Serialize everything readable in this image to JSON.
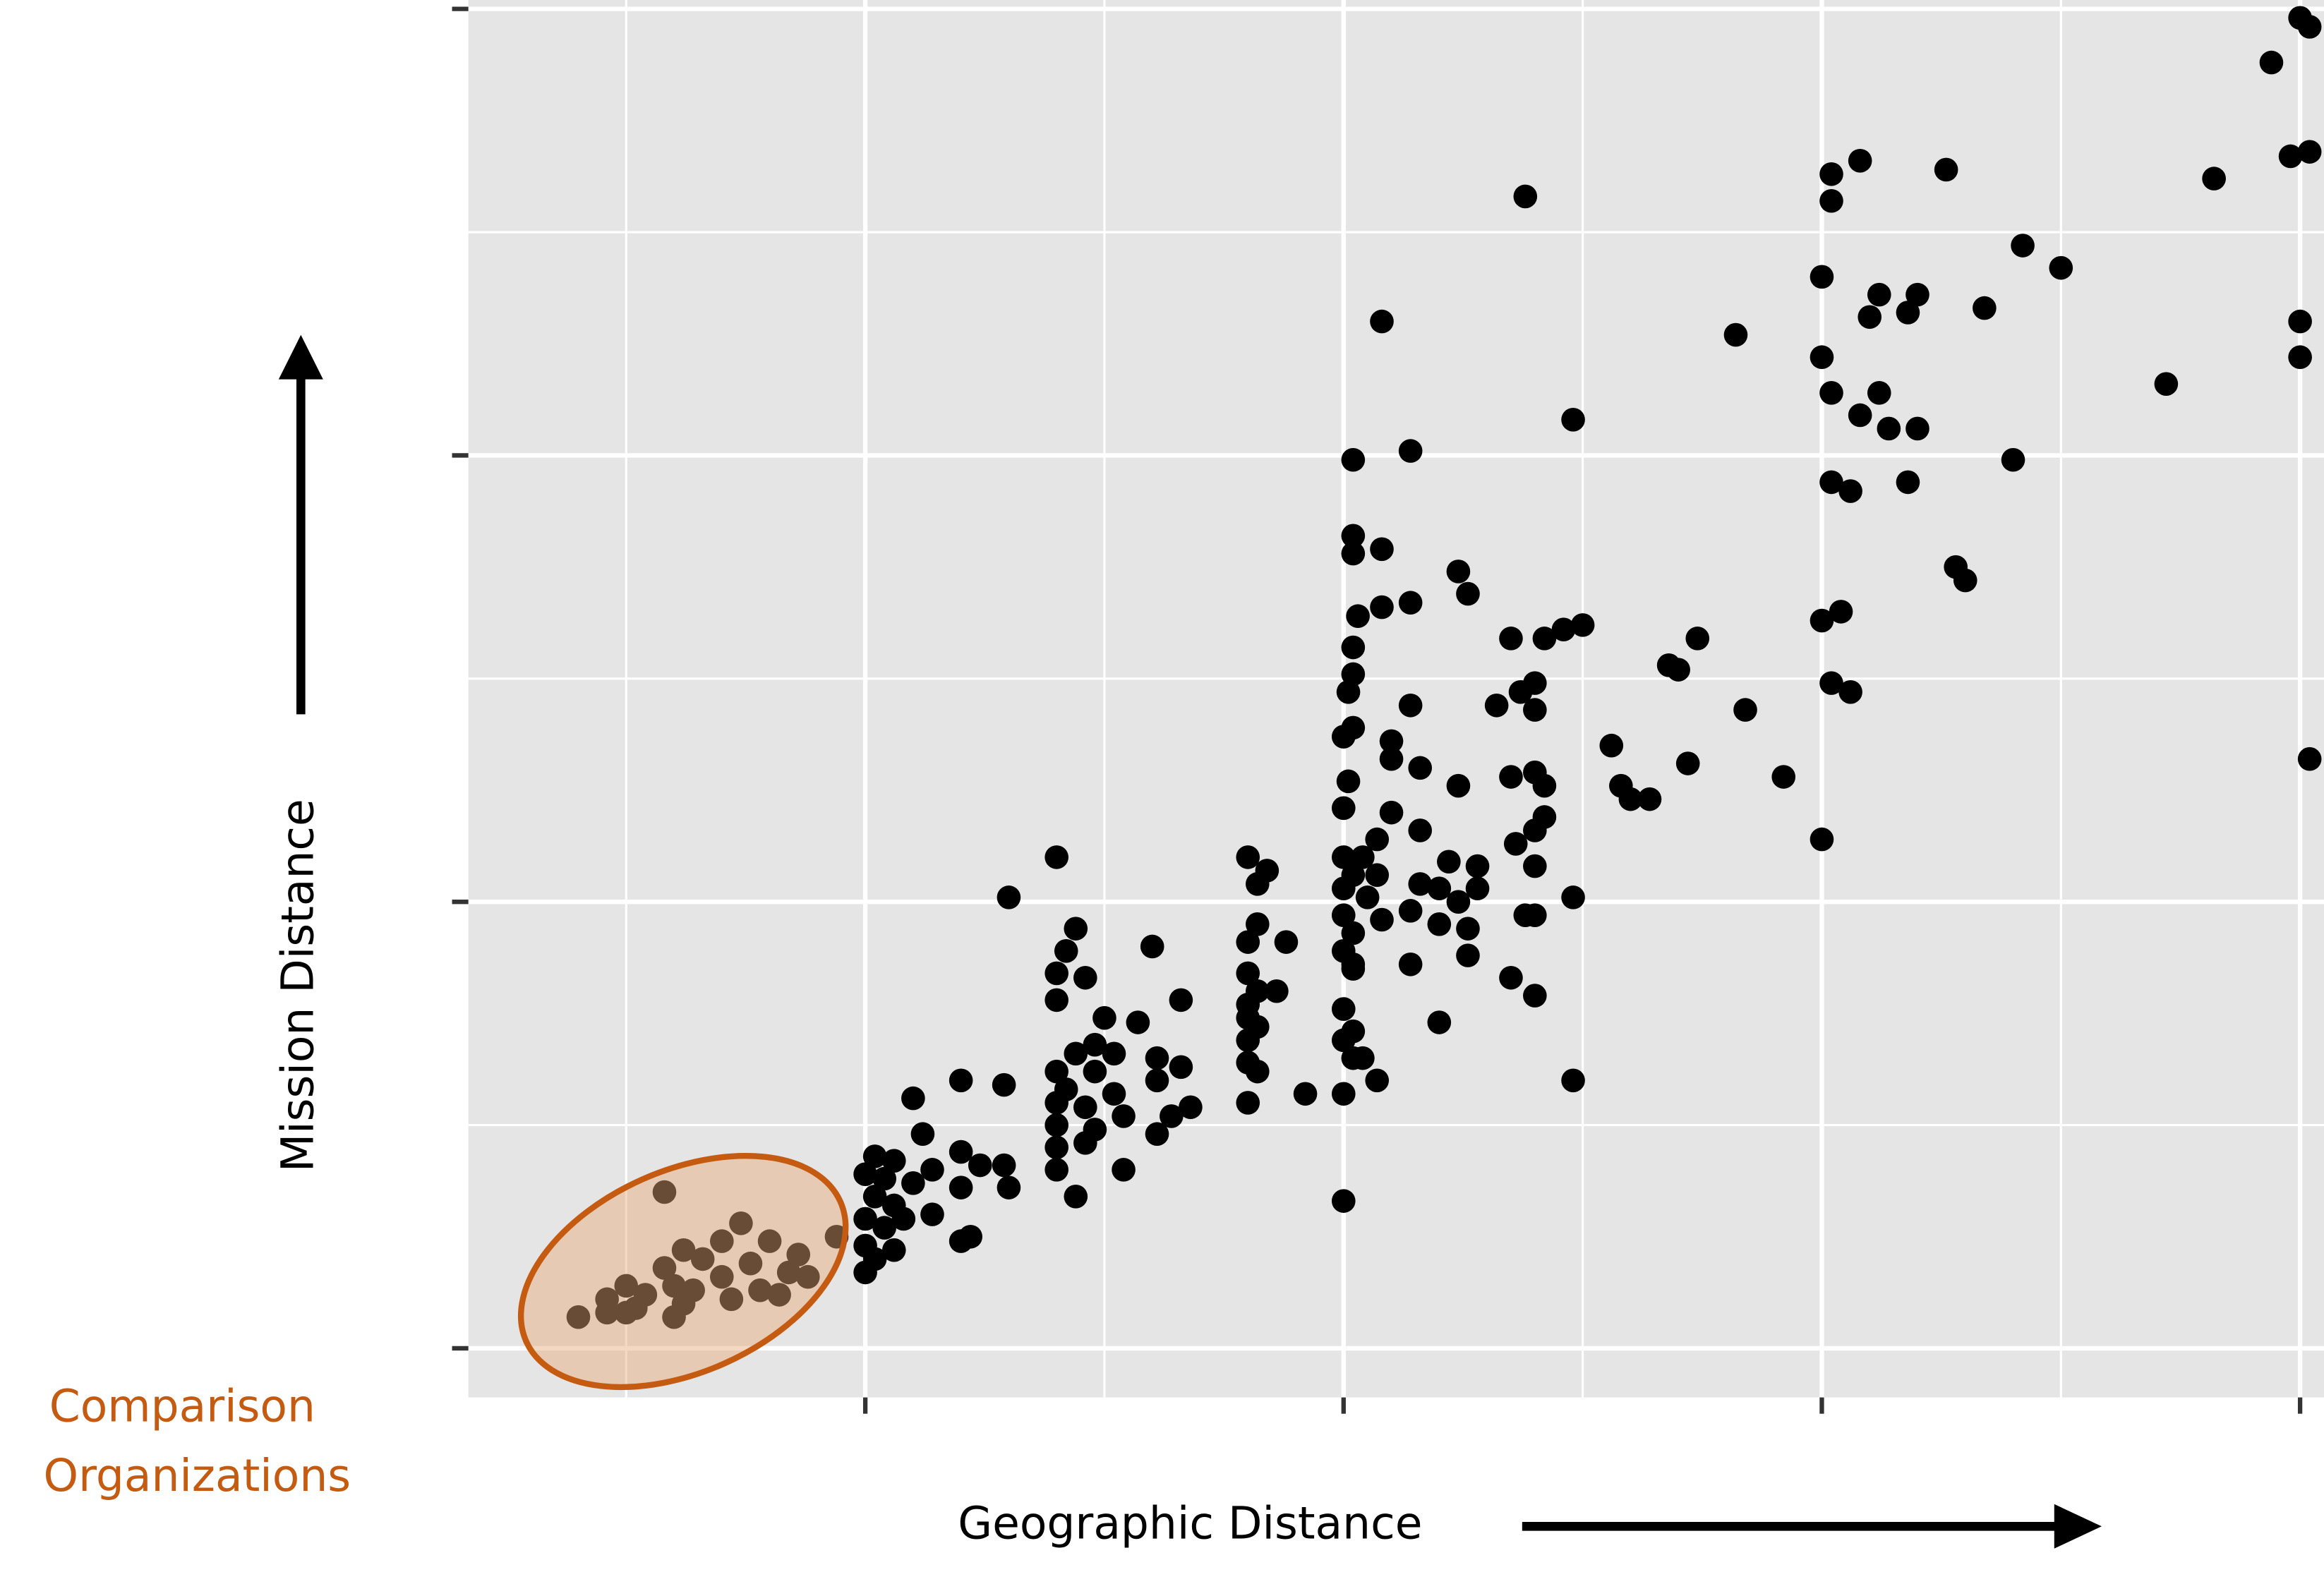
{
  "chart_data": {
    "type": "scatter",
    "xlabel": "Geographic Distance",
    "ylabel": "Mission Distance",
    "annotation": [
      "Comparison",
      "Organizations"
    ],
    "color": "#000000",
    "grid": true,
    "xlim": [
      0.17,
      4.05
    ],
    "ylim": [
      -0.11,
      3.02
    ],
    "xticks": [
      1,
      2,
      3,
      4
    ],
    "yticks": [
      0,
      1,
      2,
      3
    ],
    "x": [
      4.0,
      3.94,
      4.02,
      3.98,
      4.02,
      3.82,
      2.38,
      3.02,
      3.08,
      3.26,
      3.02,
      3.42,
      3.5,
      3.0,
      3.12,
      3.2,
      3.1,
      3.18,
      3.34,
      2.82,
      2.08,
      4.0,
      4.0,
      3.0,
      3.72,
      3.02,
      3.12,
      3.08,
      2.48,
      3.14,
      3.2,
      2.02,
      2.14,
      3.4,
      3.02,
      3.06,
      3.18,
      2.02,
      2.02,
      2.08,
      2.24,
      2.26,
      3.28,
      3.3,
      2.03,
      2.08,
      2.14,
      3.0,
      3.04,
      2.46,
      2.5,
      2.42,
      2.35,
      2.74,
      2.02,
      2.68,
      2.7,
      2.02,
      3.02,
      3.06,
      2.4,
      2.37,
      2.01,
      2.14,
      2.32,
      2.84,
      2.4,
      2.02,
      2.0,
      2.1,
      2.56,
      2.1,
      2.16,
      2.72,
      2.01,
      2.24,
      2.35,
      2.4,
      2.58,
      2.92,
      2.42,
      2.6,
      2.64,
      2.0,
      2.1,
      2.42,
      2.16,
      2.4,
      3.0,
      2.36,
      2.07,
      1.8,
      1.4,
      2.0,
      2.04,
      2.22,
      2.28,
      2.4,
      1.84,
      2.02,
      2.07,
      1.82,
      2.16,
      2.2,
      2.28,
      2.0,
      2.05,
      1.3,
      2.48,
      2.24,
      2.14,
      2.38,
      2.4,
      2.0,
      2.08,
      2.2,
      2.26,
      1.82,
      2.02,
      1.44,
      1.8,
      1.88,
      1.6,
      2.0,
      1.42,
      2.26,
      2.02,
      2.14,
      2.02,
      1.4,
      1.8,
      1.46,
      1.82,
      2.35,
      2.4,
      1.86,
      1.4,
      1.66,
      1.8,
      2.0,
      1.8,
      2.2,
      1.5,
      1.57,
      1.82,
      2.02,
      2.0,
      1.48,
      1.8,
      1.44,
      1.52,
      2.02,
      2.04,
      1.61,
      1.8,
      1.82,
      1.4,
      1.48,
      1.66,
      2.07,
      2.48,
      1.2,
      1.29,
      1.61,
      1.42,
      1.52,
      2.0,
      1.92,
      1.8,
      1.1,
      1.4,
      1.46,
      1.68,
      1.64,
      1.54,
      1.4,
      1.48,
      1.61,
      1.12,
      1.4,
      1.2,
      1.46,
      1.02,
      1.06,
      1.24,
      1.29,
      1.4,
      1.54,
      1.14,
      1.0,
      1.04,
      1.1,
      1.2,
      1.3,
      1.44,
      2.0,
      1.02,
      1.06,
      1.14,
      1.0,
      1.08,
      1.04,
      1.22,
      1.2,
      1.0,
      1.06,
      1.02,
      1.0,
      0.58,
      0.94,
      0.74,
      0.8,
      0.7,
      0.62,
      0.86,
      0.66,
      0.76,
      0.58,
      0.84,
      0.88,
      0.7,
      0.6,
      0.5,
      0.78,
      0.64,
      0.54,
      0.82,
      0.46,
      0.72,
      0.62,
      0.52,
      0.46,
      0.6,
      0.5,
      0.4,
      4.02
    ],
    "values": [
      2.98,
      2.88,
      2.96,
      2.67,
      2.68,
      2.62,
      2.58,
      2.63,
      2.66,
      2.64,
      2.57,
      2.47,
      2.42,
      2.4,
      2.36,
      2.36,
      2.31,
      2.32,
      2.33,
      2.27,
      2.3,
      2.3,
      2.22,
      2.22,
      2.16,
      2.14,
      2.14,
      2.09,
      2.08,
      2.06,
      2.06,
      1.99,
      2.01,
      1.99,
      1.94,
      1.92,
      1.94,
      1.82,
      1.78,
      1.79,
      1.74,
      1.69,
      1.75,
      1.72,
      1.64,
      1.66,
      1.67,
      1.63,
      1.65,
      1.61,
      1.62,
      1.59,
      1.59,
      1.59,
      1.57,
      1.53,
      1.52,
      1.51,
      1.49,
      1.47,
      1.49,
      1.47,
      1.47,
      1.44,
      1.44,
      1.43,
      1.43,
      1.39,
      1.37,
      1.36,
      1.35,
      1.32,
      1.3,
      1.31,
      1.27,
      1.26,
      1.28,
      1.29,
      1.26,
      1.28,
      1.26,
      1.23,
      1.23,
      1.21,
      1.2,
      1.19,
      1.16,
      1.16,
      1.14,
      1.13,
      1.14,
      1.1,
      1.1,
      1.1,
      1.1,
      1.09,
      1.08,
      1.08,
      1.07,
      1.06,
      1.06,
      1.04,
      1.04,
      1.03,
      1.03,
      1.03,
      1.01,
      1.01,
      1.01,
      1.0,
      0.98,
      0.97,
      0.97,
      0.97,
      0.96,
      0.95,
      0.94,
      0.95,
      0.93,
      0.94,
      0.91,
      0.91,
      0.9,
      0.89,
      0.89,
      0.88,
      0.86,
      0.86,
      0.85,
      0.84,
      0.84,
      0.83,
      0.8,
      0.83,
      0.79,
      0.8,
      0.78,
      0.78,
      0.77,
      0.76,
      0.74,
      0.73,
      0.74,
      0.73,
      0.72,
      0.71,
      0.69,
      0.68,
      0.69,
      0.66,
      0.66,
      0.65,
      0.65,
      0.65,
      0.64,
      0.62,
      0.62,
      0.62,
      0.63,
      0.6,
      0.6,
      0.6,
      0.59,
      0.6,
      0.58,
      0.57,
      0.57,
      0.57,
      0.55,
      0.56,
      0.55,
      0.54,
      0.54,
      0.52,
      0.52,
      0.5,
      0.49,
      0.48,
      0.48,
      0.45,
      0.44,
      0.46,
      0.43,
      0.42,
      0.41,
      0.41,
      0.4,
      0.4,
      0.4,
      0.39,
      0.38,
      0.37,
      0.36,
      0.36,
      0.34,
      0.33,
      0.34,
      0.32,
      0.3,
      0.29,
      0.29,
      0.27,
      0.25,
      0.24,
      0.23,
      0.22,
      0.2,
      0.17,
      0.35,
      0.25,
      0.28,
      0.24,
      0.24,
      0.22,
      0.21,
      0.2,
      0.19,
      0.18,
      0.17,
      0.16,
      0.16,
      0.14,
      0.14,
      0.13,
      0.13,
      0.12,
      0.12,
      0.11,
      0.11,
      0.1,
      0.09,
      0.08,
      0.07,
      0.08,
      0.07,
      1.32
    ]
  }
}
